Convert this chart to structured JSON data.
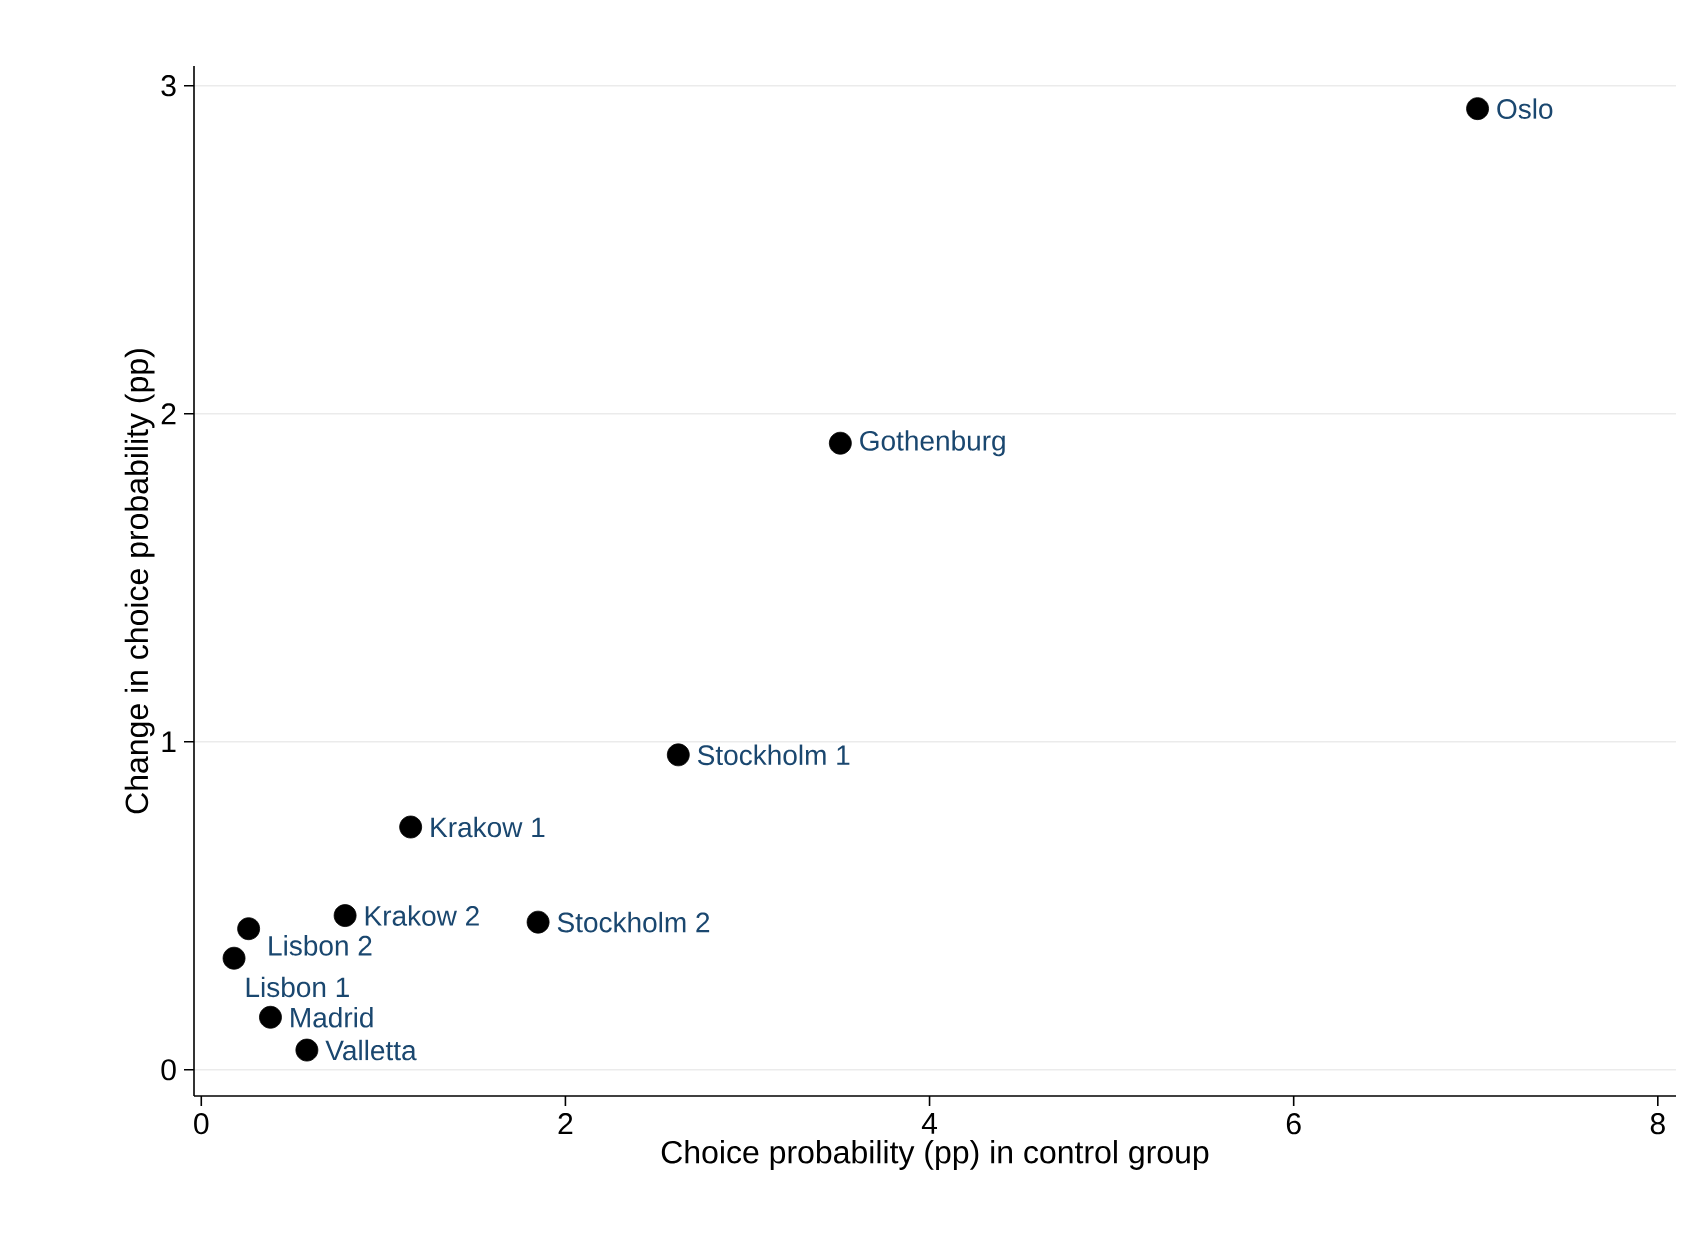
{
  "chart_data": {
    "type": "scatter",
    "xlabel": "Choice probability (pp) in control group",
    "ylabel": "Change in choice probability (pp)",
    "x": [
      7.01,
      3.51,
      2.62,
      1.15,
      0.79,
      1.85,
      0.26,
      0.18,
      0.38,
      0.58
    ],
    "series": [
      {
        "color": "#000000",
        "values": [
          2.93,
          1.91,
          0.96,
          0.74,
          0.47,
          0.45,
          0.43,
          0.34,
          0.16,
          0.06
        ]
      }
    ],
    "marker": "circle",
    "grid": "y",
    "xlim": [
      -0.04,
      8.1
    ],
    "ylim": [
      -0.08,
      3.06
    ],
    "xticks": [
      0,
      2,
      4,
      6,
      8
    ],
    "yticks": [
      0,
      1,
      2,
      3
    ],
    "annotations": [
      {
        "text": "Oslo",
        "x": 7.01,
        "y": 2.93
      },
      {
        "text": "Gothenburg",
        "x": 3.51,
        "y": 1.91
      },
      {
        "text": "Stockholm 1",
        "x": 2.62,
        "y": 0.96
      },
      {
        "text": "Krakow 1",
        "x": 1.15,
        "y": 0.74
      },
      {
        "text": "Krakow 2",
        "x": 0.79,
        "y": 0.47
      },
      {
        "text": "Stockholm 2",
        "x": 1.85,
        "y": 0.45
      },
      {
        "text": "Lisbon 2",
        "x": 0.26,
        "y": 0.43
      },
      {
        "text": "Lisbon 1",
        "x": 0.18,
        "y": 0.34
      },
      {
        "text": "Madrid",
        "x": 0.38,
        "y": 0.16
      },
      {
        "text": "Valletta",
        "x": 0.58,
        "y": 0.06
      }
    ]
  }
}
